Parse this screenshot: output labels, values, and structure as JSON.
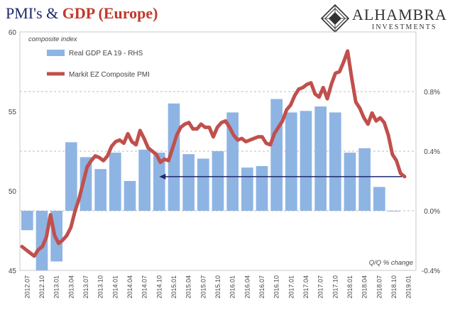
{
  "title": {
    "part1": "PMI's & ",
    "part2": "GDP (Europe)"
  },
  "logo": {
    "name": "ALHAMBRA",
    "sub": "INVESTMENTS"
  },
  "chart_data": {
    "type": "bar+line",
    "left_axis_label": "composite index",
    "right_axis_label": "Q/Q % change",
    "left_ylim": [
      45,
      60
    ],
    "left_ticks": [
      45,
      50,
      55,
      60
    ],
    "right_ylim": [
      -0.4,
      1.2
    ],
    "right_ticks": [
      {
        "value": -0.4,
        "label": "-0.4%"
      },
      {
        "value": 0.0,
        "label": "0.0%"
      },
      {
        "value": 0.4,
        "label": "0.4%"
      },
      {
        "value": 0.8,
        "label": "0.8%"
      }
    ],
    "x_tick_labels": [
      "2012.07",
      "2012.10",
      "2013.01",
      "2013.04",
      "2013.07",
      "2013.10",
      "2014.01",
      "2014.04",
      "2014.07",
      "2014.10",
      "2015.01",
      "2015.04",
      "2015.07",
      "2015.10",
      "2016.01",
      "2016.04",
      "2016.07",
      "2016.10",
      "2017.01",
      "2017.04",
      "2017.07",
      "2017.10",
      "2018.01",
      "2018.04",
      "2018.07",
      "2018.10",
      "2019.01"
    ],
    "series": [
      {
        "name": "Real GDP EA 19 - RHS",
        "axis": "right",
        "color": "#8eb4e3",
        "values": [
          -0.13,
          -0.4,
          -0.34,
          0.46,
          0.36,
          0.28,
          0.39,
          0.2,
          0.41,
          0.39,
          0.72,
          0.38,
          0.35,
          0.4,
          0.66,
          0.29,
          0.3,
          0.75,
          0.66,
          0.67,
          0.7,
          0.66,
          0.39,
          0.42,
          0.16,
          0.0
        ]
      },
      {
        "name": "Markit EZ Composite PMI",
        "axis": "left",
        "color": "#c0504d",
        "values": [
          46.5,
          46.3,
          46.1,
          45.9,
          46.3,
          46.5,
          47.1,
          48.5,
          47.2,
          46.7,
          46.9,
          47.2,
          47.7,
          48.7,
          49.5,
          50.5,
          51.5,
          51.9,
          52.2,
          52.1,
          51.9,
          52.2,
          52.8,
          53.1,
          53.2,
          53.0,
          53.6,
          53.1,
          52.9,
          53.8,
          53.3,
          52.7,
          52.5,
          52.3,
          51.8,
          52.0,
          51.9,
          52.7,
          53.5,
          54.0,
          54.2,
          54.3,
          53.9,
          53.9,
          54.2,
          54.0,
          54.0,
          53.4,
          54.0,
          54.3,
          54.4,
          54.0,
          53.5,
          53.2,
          53.3,
          53.1,
          53.2,
          53.3,
          53.4,
          53.4,
          53.0,
          52.9,
          53.6,
          54.0,
          54.4,
          55.1,
          55.4,
          56.0,
          56.4,
          56.5,
          56.7,
          56.8,
          56.1,
          55.9,
          56.5,
          55.8,
          56.7,
          57.4,
          57.5,
          58.1,
          58.8,
          57.1,
          55.6,
          55.2,
          54.6,
          54.2,
          54.9,
          54.4,
          54.6,
          54.3,
          53.5,
          52.3,
          51.9,
          51.1,
          50.9
        ]
      }
    ],
    "annotations": [
      {
        "type": "arrow",
        "from_index": 94,
        "to_value_left": 50.9,
        "to_x_index": 9.5,
        "color": "#1f2a6b"
      }
    ]
  }
}
